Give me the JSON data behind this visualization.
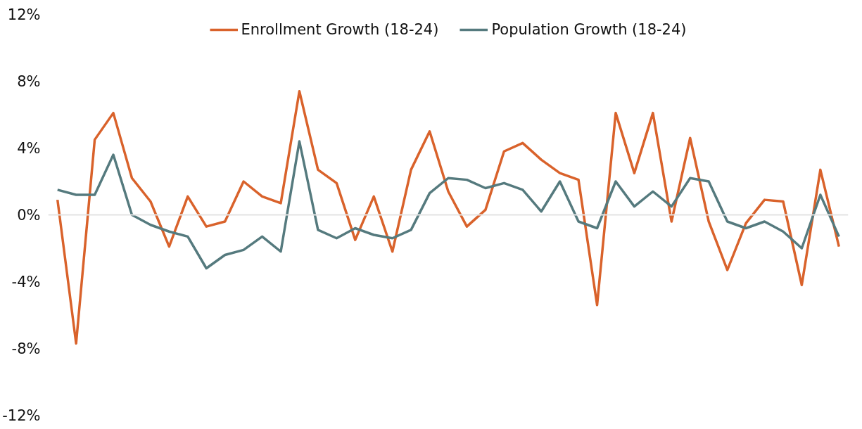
{
  "chart_data": {
    "type": "line",
    "categories": [
      null,
      null,
      null,
      null,
      null,
      null,
      null,
      null,
      null,
      null,
      null,
      null,
      null,
      null,
      null,
      null,
      null,
      null,
      null,
      null,
      null,
      null,
      null,
      null,
      null,
      null,
      null,
      null,
      null,
      null,
      null,
      null,
      null,
      null,
      null,
      null,
      null,
      null,
      null,
      null,
      null,
      null,
      null
    ],
    "series": [
      {
        "name": "Enrollment Growth (18-24)",
        "color": "#d9622b",
        "values": [
          0.9,
          -7.7,
          4.5,
          6.1,
          2.2,
          0.8,
          -1.9,
          1.1,
          -0.7,
          -0.4,
          2.0,
          1.1,
          0.7,
          7.4,
          2.7,
          1.9,
          -1.5,
          1.1,
          -2.2,
          2.7,
          5.0,
          1.4,
          -0.7,
          0.3,
          3.8,
          4.3,
          3.3,
          2.5,
          2.1,
          -5.4,
          6.1,
          2.5,
          6.1,
          -0.4,
          4.6,
          -0.4,
          -3.3,
          -0.5,
          0.9,
          0.8,
          -4.2,
          2.7,
          -1.9
        ]
      },
      {
        "name": "Population Growth (18-24)",
        "color": "#557a7e",
        "values": [
          1.5,
          1.2,
          1.2,
          3.6,
          0.0,
          -0.6,
          -1.0,
          -1.3,
          -3.2,
          -2.4,
          -2.1,
          -1.3,
          -2.2,
          4.4,
          -0.9,
          -1.4,
          -0.8,
          -1.2,
          -1.4,
          -0.9,
          1.3,
          2.2,
          2.1,
          1.6,
          1.9,
          1.5,
          0.2,
          2.0,
          -0.4,
          -0.8,
          2.0,
          0.5,
          1.4,
          0.5,
          2.2,
          2.0,
          -0.4,
          -0.8,
          -0.4,
          -1.0,
          -2.0,
          1.2,
          -1.3
        ]
      }
    ],
    "ylim": [
      -12,
      12
    ],
    "yticks": [
      {
        "value": -12,
        "label": "-12%"
      },
      {
        "value": -8,
        "label": "-8%"
      },
      {
        "value": -4,
        "label": "-4%"
      },
      {
        "value": 0,
        "label": "0%"
      },
      {
        "value": 4,
        "label": "4%"
      },
      {
        "value": 8,
        "label": "8%"
      },
      {
        "value": 12,
        "label": "12%"
      }
    ],
    "tick_labels": "y",
    "grid": false,
    "legend": "top",
    "marker": "none",
    "line_style": "solid",
    "ref_lines": [
      {
        "axis": "y",
        "value": 0,
        "label": null,
        "color": "#e3e3e3"
      }
    ]
  }
}
